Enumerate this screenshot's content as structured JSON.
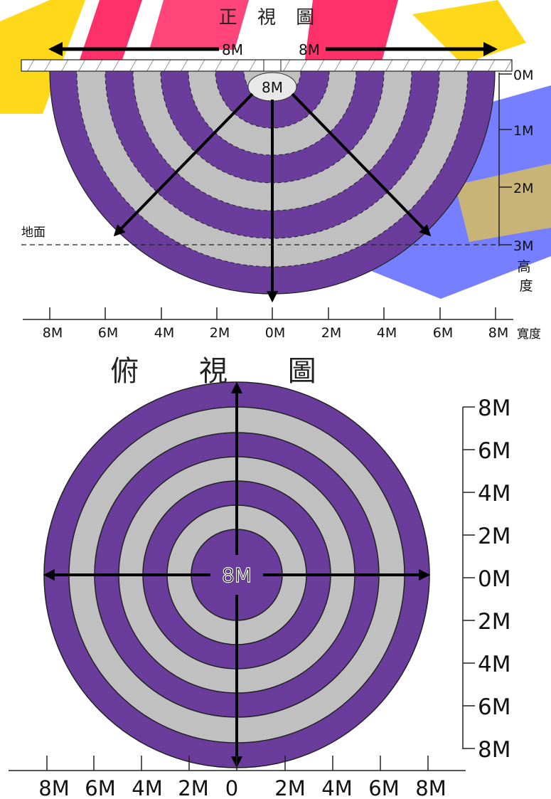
{
  "front_view": {
    "title": "正 視 圖",
    "arrow_label_left": "8M",
    "arrow_label_right": "8M",
    "center_label": "8M",
    "ground_label": "地面",
    "height_ticks": [
      "0M",
      "1M",
      "2M",
      "3M"
    ],
    "height_axis_label": "高度",
    "width_ticks": [
      "8M",
      "6M",
      "4M",
      "2M",
      "0M",
      "2M",
      "4M",
      "6M",
      "8M"
    ],
    "width_axis_label": "寬度"
  },
  "top_view": {
    "title": "俯 視 圖",
    "center_label": "8M",
    "right_ticks": [
      "8M",
      "6M",
      "4M",
      "2M",
      "0M",
      "2M",
      "4M",
      "6M",
      "8M"
    ],
    "bottom_ticks": [
      "8M",
      "6M",
      "4M",
      "2M",
      "0",
      "2M",
      "4M",
      "6M",
      "8M"
    ]
  },
  "colors": {
    "purple": "#6a3c9b",
    "gray": "#c0c0c0",
    "watermark_yellow": "#ffd400",
    "watermark_red": "#ff1a5a",
    "watermark_blue": "#4a57ff"
  }
}
